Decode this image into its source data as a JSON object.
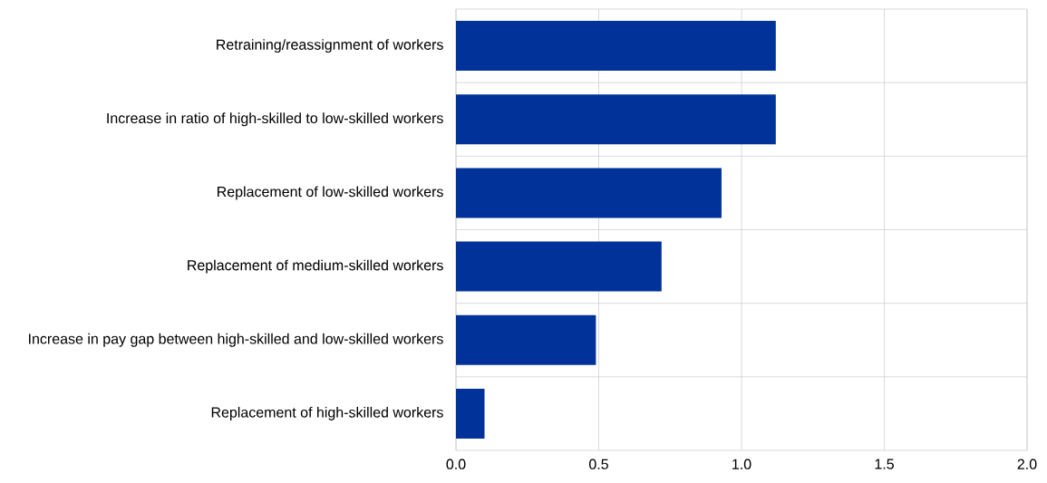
{
  "chart_data": {
    "type": "bar",
    "orientation": "horizontal",
    "categories": [
      "Retraining/reassignment of workers",
      "Increase in ratio of high-skilled to low-skilled workers",
      "Replacement of low-skilled workers",
      "Replacement of medium-skilled workers",
      "Increase in pay gap between high-skilled and low-skilled workers",
      "Replacement of high-skilled workers"
    ],
    "values": [
      1.12,
      1.12,
      0.93,
      0.72,
      0.49,
      0.1
    ],
    "color": "#003299",
    "xlim": [
      0,
      2
    ],
    "xticks": [
      {
        "value": 0,
        "label": "0.0"
      },
      {
        "value": 0.5,
        "label": "0.5"
      },
      {
        "value": 1,
        "label": "1.0"
      },
      {
        "value": 1.5,
        "label": "1.5"
      },
      {
        "value": 2,
        "label": "2.0"
      }
    ],
    "grid": true
  }
}
